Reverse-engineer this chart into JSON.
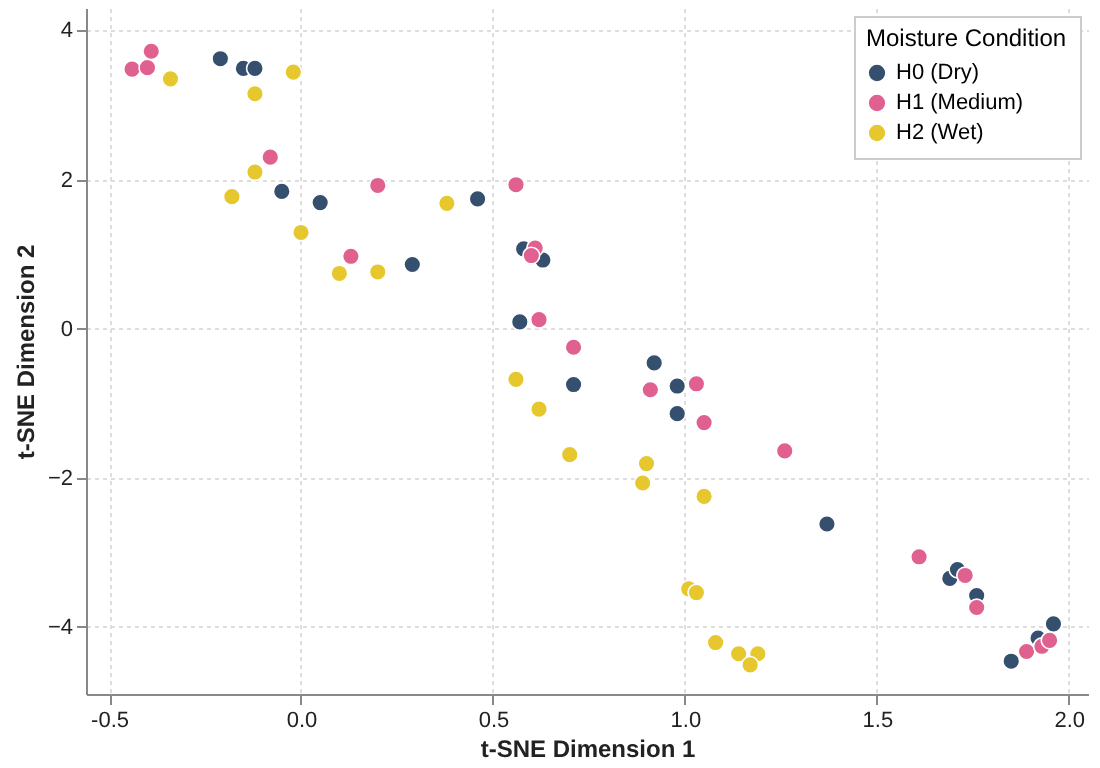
{
  "chart_data": {
    "type": "scatter",
    "xlabel": "t-SNE Dimension 1",
    "ylabel": "t-SNE Dimension 2",
    "legend_title": "Moisture Condition",
    "legend": "top right",
    "grid": true,
    "marker": "circle",
    "xlim": [
      -0.56,
      2.05
    ],
    "ylim": [
      -4.9,
      4.3
    ],
    "xticks": [
      -0.5,
      {
        "value": 0,
        "label": "0.0"
      },
      0.5,
      {
        "value": 1,
        "label": "1.0"
      },
      1.5,
      {
        "value": 2,
        "label": "2.0"
      }
    ],
    "yticks": [
      -4,
      -2,
      0,
      2,
      4
    ],
    "series": [
      {
        "name": "H0 (Dry)",
        "color": "#354f6f",
        "x": [
          -0.21,
          -0.15,
          -0.12,
          -0.05,
          0.05,
          0.29,
          0.46,
          0.58,
          0.63,
          0.57,
          0.71,
          0.92,
          0.98,
          0.98,
          1.37,
          1.69,
          1.71,
          1.76,
          1.85,
          1.92,
          1.96
        ],
        "values": [
          3.62,
          3.49,
          3.49,
          1.84,
          1.69,
          0.86,
          1.74,
          1.07,
          0.92,
          0.09,
          -0.75,
          -0.46,
          -0.77,
          -1.14,
          -2.62,
          -3.35,
          -3.23,
          -3.58,
          -4.46,
          -4.15,
          -3.96
        ]
      },
      {
        "name": "H1 (Medium)",
        "color": "#e0608f",
        "x": [
          -0.44,
          -0.4,
          -0.39,
          -0.08,
          0.2,
          0.13,
          0.56,
          0.61,
          0.6,
          0.62,
          0.71,
          0.91,
          1.03,
          1.05,
          1.26,
          1.61,
          1.73,
          1.76,
          1.89,
          1.93,
          1.95
        ],
        "values": [
          3.48,
          3.5,
          3.72,
          2.3,
          1.92,
          0.97,
          1.93,
          1.08,
          0.98,
          0.12,
          -0.25,
          -0.82,
          -0.74,
          -1.26,
          -1.64,
          -3.06,
          -3.31,
          -3.74,
          -4.33,
          -4.26,
          -4.18
        ]
      },
      {
        "name": "H2 (Wet)",
        "color": "#e6c82e",
        "x": [
          -0.34,
          -0.12,
          -0.02,
          -0.12,
          -0.18,
          0.0,
          0.1,
          0.2,
          0.38,
          0.56,
          0.62,
          0.7,
          0.9,
          0.89,
          1.05,
          1.01,
          1.03,
          1.08,
          1.14,
          1.19,
          1.17
        ],
        "values": [
          3.35,
          3.15,
          3.44,
          2.1,
          1.77,
          1.29,
          0.74,
          0.76,
          1.68,
          -0.68,
          -1.08,
          -1.69,
          -1.81,
          -2.07,
          -2.25,
          -3.49,
          -3.54,
          -4.21,
          -4.36,
          -4.36,
          -4.51
        ]
      }
    ]
  }
}
